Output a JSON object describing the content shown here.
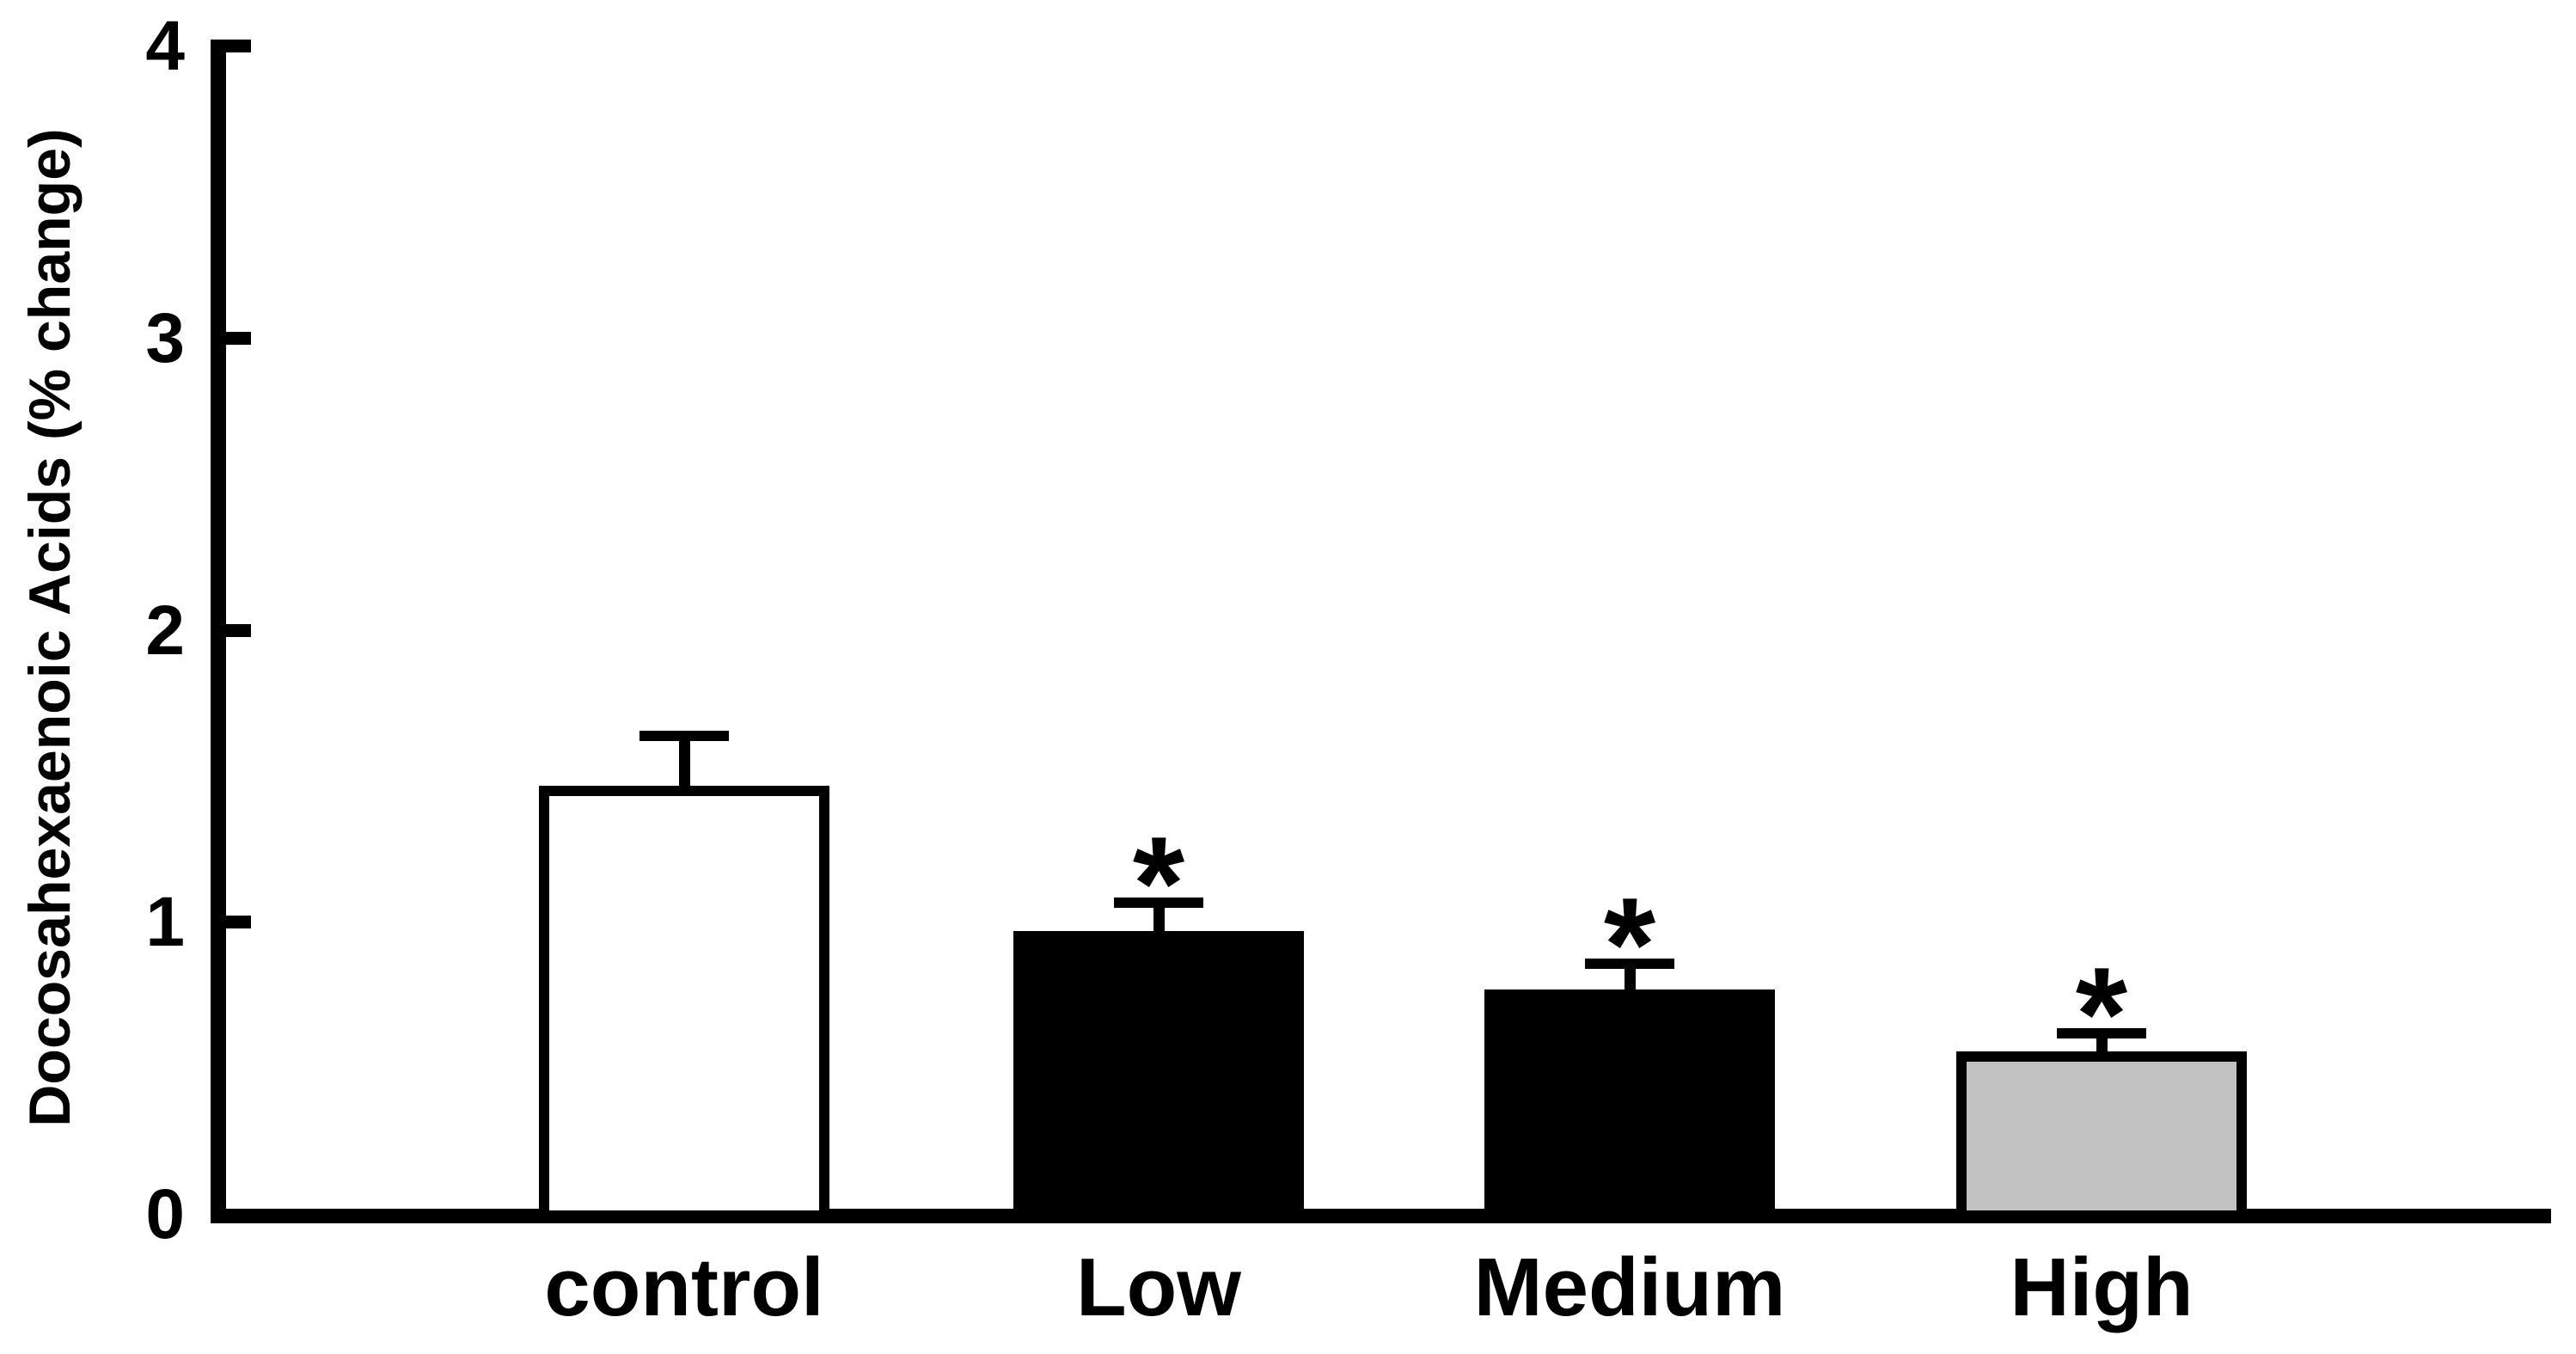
{
  "chart_data": {
    "type": "bar",
    "title": "",
    "ylabel": "Docosahexaenoic Acids (% change)",
    "xlabel": "",
    "categories": [
      "control",
      "Low",
      "Medium",
      "High"
    ],
    "values": [
      1.47,
      0.97,
      0.77,
      0.56
    ],
    "errors": [
      0.17,
      0.1,
      0.09,
      0.06
    ],
    "error_bar_style": "upper, T-cap",
    "significance": [
      "",
      "*",
      "*",
      "*"
    ],
    "bar_fills": [
      "#ffffff",
      "#000000",
      "#000000",
      "#c2c2c2"
    ],
    "bar_border_color": "#000000",
    "axis_color": "#000000",
    "ylim": [
      0,
      4
    ],
    "yticks": [
      0,
      1,
      2,
      3,
      4
    ],
    "ytick_labels": [
      "0",
      "1",
      "2",
      "3",
      "4"
    ],
    "grid": false,
    "legend": "none"
  }
}
